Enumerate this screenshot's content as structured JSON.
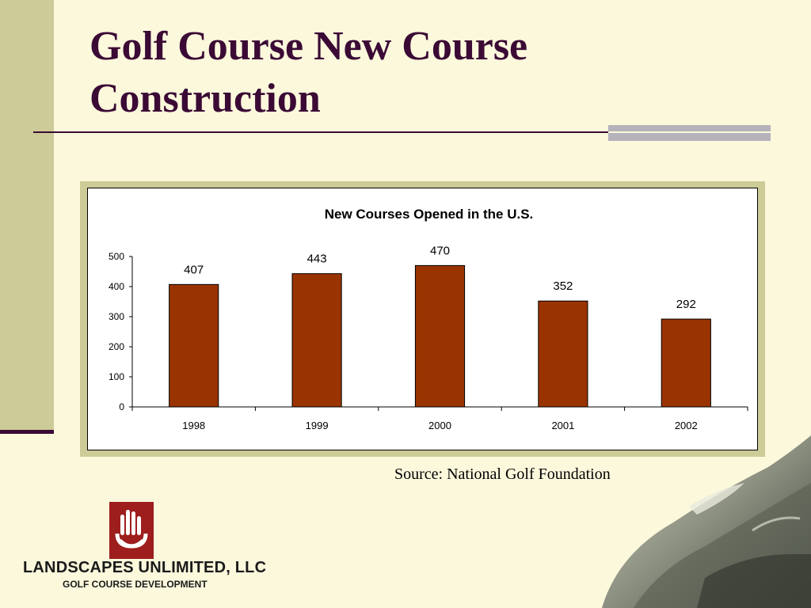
{
  "slide": {
    "title": "Golf Course New Course Construction",
    "source": "Source: National Golf Foundation"
  },
  "logo": {
    "name": "LANDSCAPES UNLIMITED, LLC",
    "subtitle": "GOLF COURSE DEVELOPMENT",
    "color": "#9e1d1d"
  },
  "colors": {
    "background": "#fbf8dc",
    "accent": "#3b0a35",
    "band": "#cdcb97",
    "bar": "#993300"
  },
  "chart_data": {
    "type": "bar",
    "title": "New Courses Opened in the U.S.",
    "xlabel": "",
    "ylabel": "",
    "categories": [
      "1998",
      "1999",
      "2000",
      "2001",
      "2002"
    ],
    "values": [
      407,
      443,
      470,
      352,
      292
    ],
    "data_labels": [
      "407",
      "443",
      "470",
      "352",
      "292"
    ],
    "ylim": [
      0,
      500
    ],
    "yticks": [
      0,
      100,
      200,
      300,
      400,
      500
    ],
    "grid": false,
    "legend": "none",
    "bar_color": "#993300"
  }
}
